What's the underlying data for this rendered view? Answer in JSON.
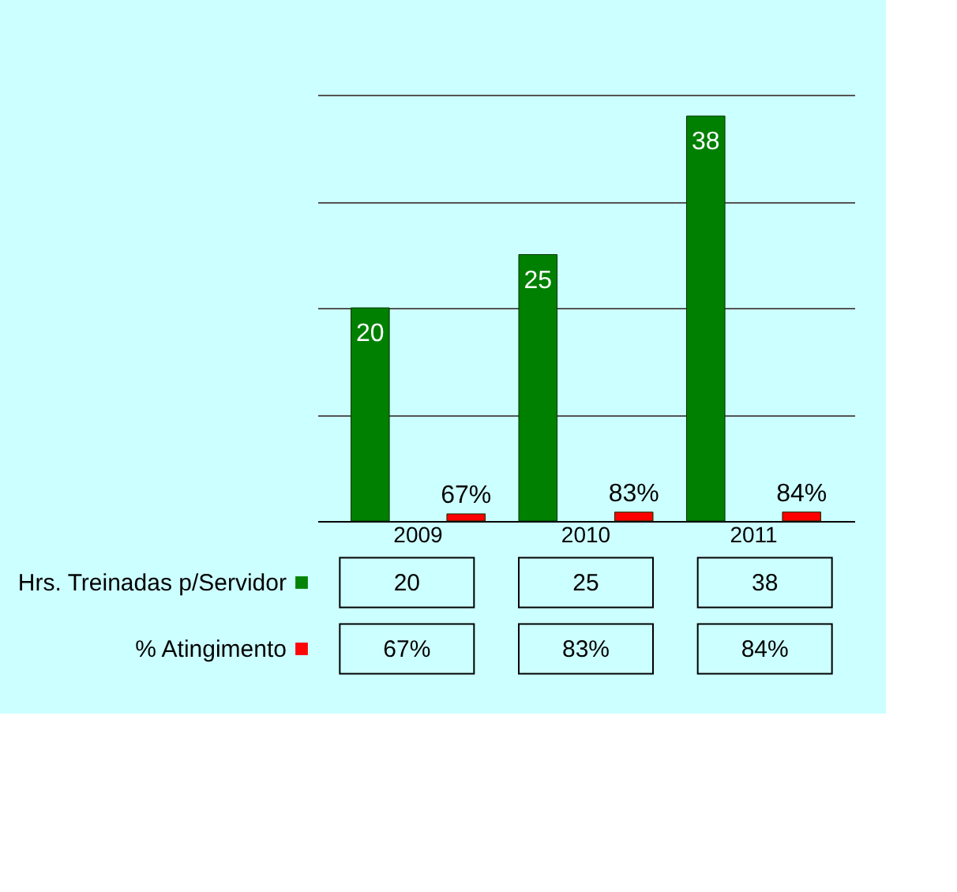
{
  "chart_data": {
    "type": "bar",
    "categories": [
      "2009",
      "2010",
      "2011"
    ],
    "series": [
      {
        "name": "Hrs. Treinadas p/Servidor",
        "color": "#008000",
        "values": [
          20,
          25,
          38
        ],
        "value_labels": [
          "20",
          "25",
          "38"
        ]
      },
      {
        "name": "% Atingimento",
        "color": "#ff0000",
        "values": [
          0.67,
          0.83,
          0.84
        ],
        "value_labels": [
          "67%",
          "83%",
          "84%"
        ]
      }
    ],
    "ylim": [
      0,
      40
    ],
    "yticks": [
      {
        "value": 0,
        "label": null
      },
      {
        "value": 10,
        "label": null
      },
      {
        "value": 20,
        "label": null
      },
      {
        "value": 30,
        "label": null
      },
      {
        "value": 40,
        "label": null
      }
    ],
    "grid": "y",
    "legend": "bottom left",
    "tick_labels": "x"
  }
}
